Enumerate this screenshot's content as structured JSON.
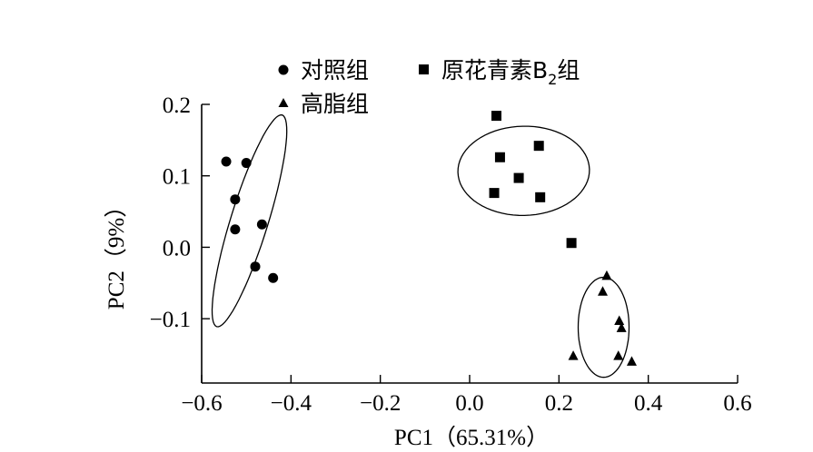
{
  "chart_data": {
    "type": "scatter",
    "xlabel": "PC1（65.31%）",
    "ylabel": "PC2（9%）",
    "xlim": [
      -0.6,
      0.6
    ],
    "ylim": [
      -0.19,
      0.2
    ],
    "x_ticks": [
      -0.6,
      -0.4,
      -0.2,
      0.0,
      0.2,
      0.4,
      0.6
    ],
    "x_tick_labels": [
      "−0.6",
      "−0.4",
      "−0.2",
      "0.0",
      "0.2",
      "0.4",
      "0.6"
    ],
    "y_ticks": [
      -0.1,
      0.0,
      0.1,
      0.2
    ],
    "y_tick_labels": [
      "−0.1",
      "0.0",
      "0.1",
      "0.2"
    ],
    "grid": false,
    "legend_position": "top",
    "series": [
      {
        "name": "对照组",
        "marker": "circle",
        "x": [
          -0.545,
          -0.5,
          -0.525,
          -0.525,
          -0.465,
          -0.48,
          -0.44
        ],
        "y": [
          0.12,
          0.118,
          0.067,
          0.025,
          0.032,
          -0.027,
          -0.043
        ]
      },
      {
        "name": "原花青素B₂组",
        "marker": "square",
        "x": [
          0.06,
          0.068,
          0.155,
          0.11,
          0.055,
          0.158,
          0.228
        ],
        "y": [
          0.184,
          0.126,
          0.142,
          0.097,
          0.076,
          0.07,
          0.006
        ]
      },
      {
        "name": "高脂组",
        "marker": "triangle",
        "x": [
          0.307,
          0.298,
          0.335,
          0.34,
          0.232,
          0.333,
          0.363
        ],
        "y": [
          -0.04,
          -0.062,
          -0.103,
          -0.113,
          -0.152,
          -0.152,
          -0.16
        ]
      }
    ],
    "group_ellipses": [
      {
        "cx": -0.493,
        "cy": 0.037,
        "rx": 0.042,
        "ry": 0.155,
        "angle": 0.3
      },
      {
        "cx": 0.121,
        "cy": 0.107,
        "rx": 0.1,
        "ry": 0.092,
        "angle": 1.55
      },
      {
        "cx": 0.3,
        "cy": -0.112,
        "rx": 0.057,
        "ry": 0.07,
        "angle": 0
      }
    ]
  }
}
